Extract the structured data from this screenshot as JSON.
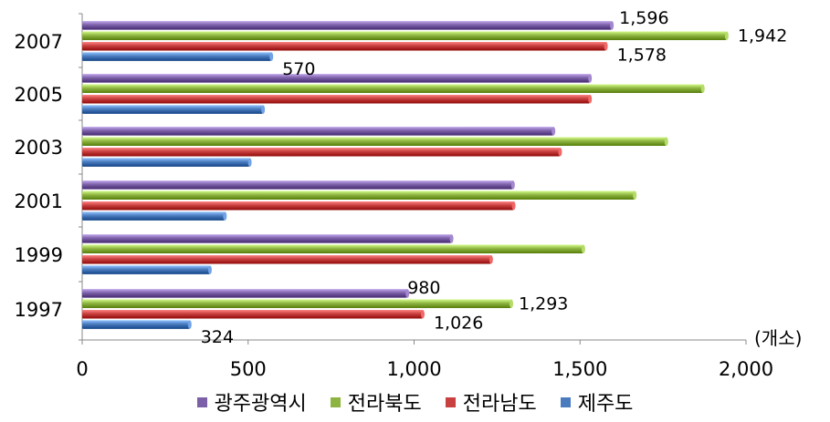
{
  "chart_data": {
    "type": "bar",
    "orientation": "horizontal",
    "categories": [
      "1997",
      "1999",
      "2001",
      "2003",
      "2005",
      "2007"
    ],
    "series": [
      {
        "name": "광주광역시",
        "color": "#7B60A7",
        "values": [
          980,
          1113,
          1298,
          1420,
          1530,
          1596
        ]
      },
      {
        "name": "전라북도",
        "color": "#8DB441",
        "values": [
          1293,
          1510,
          1665,
          1760,
          1870,
          1942
        ]
      },
      {
        "name": "전라남도",
        "color": "#C8403F",
        "values": [
          1026,
          1232,
          1300,
          1440,
          1530,
          1578
        ]
      },
      {
        "name": "제주도",
        "color": "#4A7BBE",
        "values": [
          324,
          385,
          430,
          505,
          545,
          570
        ]
      }
    ],
    "data_labels": {
      "1997": [
        "980",
        "1,293",
        "1,026",
        "324"
      ],
      "2007": [
        "1,596",
        "1,942",
        "1,578",
        "570"
      ]
    },
    "xlim": [
      0,
      2000
    ],
    "xticks": [
      "0",
      "500",
      "1,000",
      "1,500",
      "2,000"
    ],
    "unit_label": "(개소)",
    "legend_position": "bottom",
    "grid": false
  }
}
